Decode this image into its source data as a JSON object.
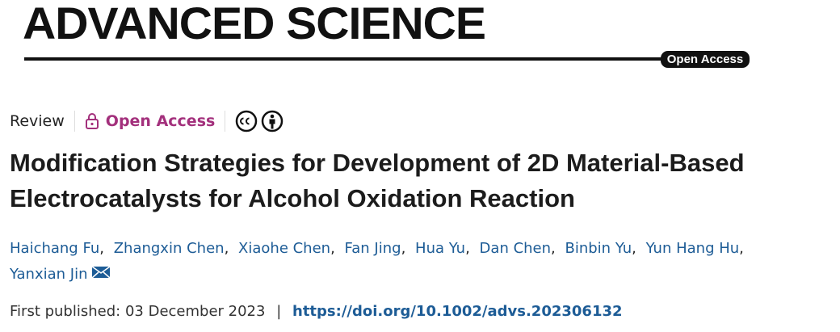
{
  "journal": {
    "name": "ADVANCED SCIENCE",
    "badge": "Open Access"
  },
  "meta": {
    "article_type": "Review",
    "access": "Open Access"
  },
  "title": {
    "lines": [
      "Modification Strategies for Development of 2D Material-Based",
      "Electrocatalysts for Alcohol Oxidation Reaction"
    ]
  },
  "authors": {
    "names": [
      "Haichang Fu",
      "Zhangxin Chen",
      "Xiaohe Chen",
      "Fan Jing",
      "Hua Yu",
      "Dan Chen",
      "Binbin Yu",
      "Yun Hang Hu",
      "Yanxian Jin"
    ],
    "separator": ","
  },
  "published": {
    "label": "First published:",
    "date": "03 December 2023",
    "separator": "|",
    "doi": "https://doi.org/10.1002/advs.202306132"
  }
}
